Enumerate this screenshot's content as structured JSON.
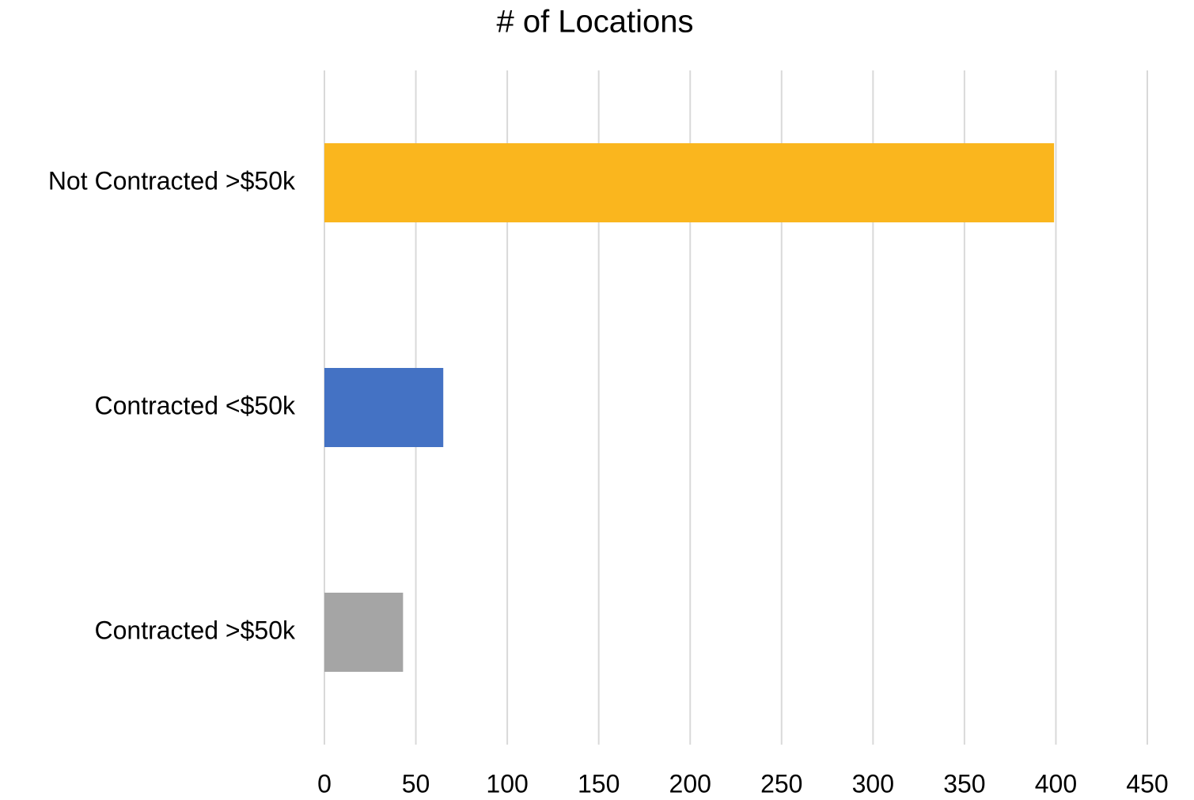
{
  "chart_data": {
    "type": "bar",
    "orientation": "horizontal",
    "title": "# of Locations",
    "categories": [
      "Not Contracted >$50k",
      "Contracted <$50k",
      "Contracted >$50k"
    ],
    "values": [
      399,
      65,
      43
    ],
    "colors": [
      "#fab61e",
      "#4472c4",
      "#a5a5a5"
    ],
    "xlim": [
      0,
      450
    ],
    "xticks": [
      0,
      50,
      100,
      150,
      200,
      250,
      300,
      350,
      400,
      450
    ],
    "grid": true
  }
}
